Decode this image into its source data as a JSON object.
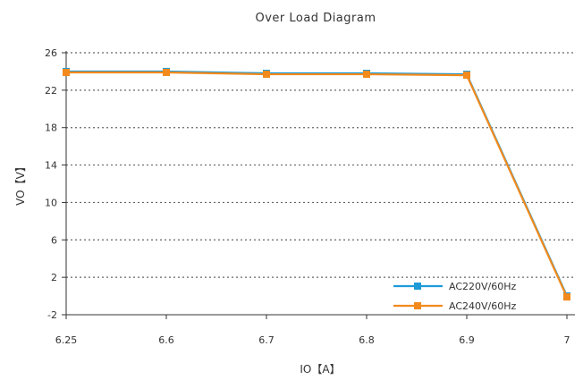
{
  "chart_data": {
    "type": "line",
    "title": "Over Load Diagram",
    "xlabel": "IO【A】",
    "ylabel": "VO【V】",
    "categories": [
      "6.25",
      "6.6",
      "6.7",
      "6.8",
      "6.9",
      "7"
    ],
    "y_ticks": [
      "26",
      "22",
      "18",
      "14",
      "10",
      "6",
      "2",
      "-2"
    ],
    "ylim": [
      -2,
      26
    ],
    "grid": "horizontal-dotted",
    "legend_position": "bottom-right",
    "series": [
      {
        "name": "AC220V/60Hz",
        "color": "#1c9bd8",
        "values": [
          24.0,
          24.0,
          23.8,
          23.8,
          23.7,
          0.0
        ]
      },
      {
        "name": "AC240V/60Hz",
        "color": "#f28a1c",
        "values": [
          23.9,
          23.9,
          23.7,
          23.7,
          23.6,
          -0.1
        ]
      }
    ]
  }
}
